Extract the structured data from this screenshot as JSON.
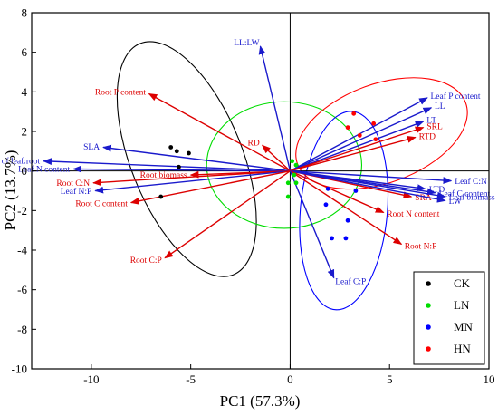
{
  "chart_data": {
    "type": "scatter",
    "subtype": "pca-biplot",
    "xlabel": "PC1 (57.3%)",
    "ylabel": "PC2 (13.7%)",
    "xlim": [
      -13,
      10
    ],
    "ylim": [
      -10,
      8
    ],
    "x_ticks": [
      -10,
      -5,
      0,
      5,
      10
    ],
    "y_ticks": [
      -10,
      -8,
      -6,
      -4,
      -2,
      0,
      2,
      4,
      6,
      8
    ],
    "grid": false,
    "reference_lines": {
      "x": 0,
      "y": 0
    },
    "legend_position": "bottom-right",
    "series": [
      {
        "name": "CK",
        "color": "#000000",
        "points": [
          [
            -6.0,
            1.2
          ],
          [
            -5.7,
            1.0
          ],
          [
            -5.1,
            0.9
          ],
          [
            -5.6,
            0.2
          ],
          [
            -6.5,
            -1.3
          ]
        ]
      },
      {
        "name": "LN",
        "color": "#00dd00",
        "points": [
          [
            0.1,
            0.5
          ],
          [
            0.3,
            0.3
          ],
          [
            -0.1,
            -0.6
          ],
          [
            -0.1,
            -1.3
          ],
          [
            0.3,
            -0.6
          ],
          [
            0.2,
            -0.2
          ]
        ]
      },
      {
        "name": "MN",
        "color": "#0000ff",
        "points": [
          [
            1.9,
            -0.9
          ],
          [
            1.8,
            -1.7
          ],
          [
            3.3,
            -1.0
          ],
          [
            2.9,
            -2.5
          ],
          [
            2.1,
            -3.4
          ],
          [
            2.8,
            -3.4
          ]
        ]
      },
      {
        "name": "HN",
        "color": "#ff0000",
        "points": [
          [
            3.2,
            2.9
          ],
          [
            2.9,
            2.2
          ],
          [
            3.5,
            1.8
          ],
          [
            4.2,
            2.4
          ],
          [
            4.3,
            1.6
          ]
        ]
      }
    ],
    "ellipses": [
      {
        "group": "CK",
        "color": "#000000",
        "cx": -5.2,
        "cy": 0.6,
        "rx": 2.8,
        "ry": 6.3,
        "angle_deg": -22
      },
      {
        "group": "LN",
        "color": "#00dd00",
        "cx": -0.3,
        "cy": 0.3,
        "rx": 3.9,
        "ry": 3.2,
        "angle_deg": 0
      },
      {
        "group": "MN",
        "color": "#0000ff",
        "cx": 2.7,
        "cy": -2.0,
        "rx": 5.0,
        "ry": 2.2,
        "angle_deg": 95
      },
      {
        "group": "HN",
        "color": "#ff0000",
        "cx": 4.6,
        "cy": 1.9,
        "rx": 4.5,
        "ry": 2.5,
        "angle_deg": -20
      }
    ],
    "loadings": [
      {
        "label": "LL:LW",
        "x": -1.5,
        "y": 6.3,
        "color": "#1a1acc"
      },
      {
        "label": "Leaf P content",
        "x": 6.9,
        "y": 3.7,
        "color": "#1a1acc"
      },
      {
        "label": "LL",
        "x": 7.1,
        "y": 3.2,
        "color": "#1a1acc"
      },
      {
        "label": "LT",
        "x": 6.7,
        "y": 2.5,
        "color": "#1a1acc"
      },
      {
        "label": "SRL",
        "x": 6.7,
        "y": 2.2,
        "color": "#dd0000"
      },
      {
        "label": "RTD",
        "x": 6.3,
        "y": 1.7,
        "color": "#dd0000"
      },
      {
        "label": "Root P content",
        "x": -7.1,
        "y": 3.9,
        "color": "#dd0000"
      },
      {
        "label": "RD",
        "x": -1.4,
        "y": 1.3,
        "color": "#dd0000"
      },
      {
        "label": "SLA",
        "x": -9.4,
        "y": 1.2,
        "color": "#1a1acc"
      },
      {
        "label": "Biomass ratio of leaf:root",
        "x": -12.4,
        "y": 0.5,
        "color": "#1a1acc"
      },
      {
        "label": "Leaf N content",
        "x": -10.9,
        "y": 0.1,
        "color": "#1a1acc"
      },
      {
        "label": "Root biomass",
        "x": -5.0,
        "y": -0.2,
        "color": "#dd0000"
      },
      {
        "label": "Root C:N",
        "x": -9.9,
        "y": -0.6,
        "color": "#dd0000"
      },
      {
        "label": "Leaf N:P",
        "x": -9.8,
        "y": -1.0,
        "color": "#1a1acc"
      },
      {
        "label": "Root C content",
        "x": -8.0,
        "y": -1.6,
        "color": "#dd0000"
      },
      {
        "label": "Root C:P",
        "x": -6.3,
        "y": -4.4,
        "color": "#dd0000"
      },
      {
        "label": "Leaf C:N",
        "x": 8.1,
        "y": -0.5,
        "color": "#1a1acc"
      },
      {
        "label": "LTD",
        "x": 6.8,
        "y": -0.9,
        "color": "#1a1acc"
      },
      {
        "label": "Leaf C content",
        "x": 7.3,
        "y": -1.1,
        "color": "#1a1acc"
      },
      {
        "label": "SRA",
        "x": 6.1,
        "y": -1.3,
        "color": "#dd0000"
      },
      {
        "label": "Leaf biomass",
        "x": 7.8,
        "y": -1.3,
        "color": "#1a1acc"
      },
      {
        "label": "LW",
        "x": 7.8,
        "y": -1.5,
        "color": "#1a1acc"
      },
      {
        "label": "Root N content",
        "x": 4.7,
        "y": -2.1,
        "color": "#dd0000"
      },
      {
        "label": "Root N:P",
        "x": 5.6,
        "y": -3.7,
        "color": "#dd0000"
      },
      {
        "label": "Leaf C:P",
        "x": 2.2,
        "y": -5.4,
        "color": "#1a1acc"
      }
    ]
  }
}
